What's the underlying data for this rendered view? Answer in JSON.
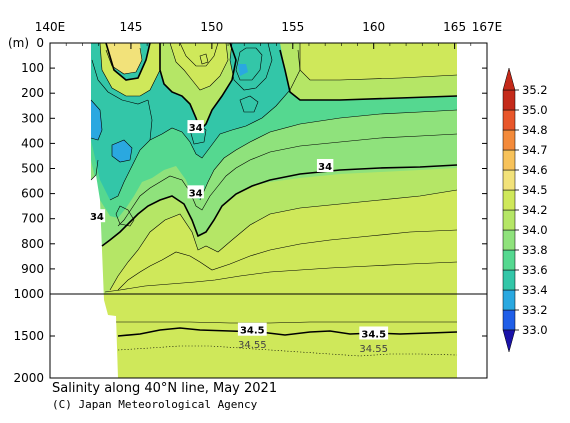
{
  "chart_data": {
    "type": "heatmap",
    "title": "Salinity along 40°N line, May 2021",
    "credit": "(C) Japan Meteorological Agency",
    "x_axis": {
      "range": [
        140,
        167
      ],
      "tick_values": [
        140,
        145,
        150,
        155,
        160,
        165,
        167
      ],
      "tick_labels": [
        "140E",
        "145",
        "150",
        "155",
        "160",
        "165",
        "167E"
      ]
    },
    "y_axis": {
      "unit_label": "(m)",
      "range": [
        0,
        2000
      ],
      "tick_labels": [
        "0",
        "100",
        "200",
        "300",
        "400",
        "500",
        "600",
        "700",
        "800",
        "900",
        "1000",
        "1500",
        "2000"
      ],
      "upper_ticks": [
        0,
        100,
        200,
        300,
        400,
        500,
        600,
        700,
        800,
        900,
        1000
      ],
      "lower_ticks": [
        1500,
        2000
      ],
      "scale_break_depth": 1000
    },
    "colorbar": {
      "levels": [
        33.0,
        33.2,
        33.4,
        33.6,
        33.8,
        34.0,
        34.2,
        34.5,
        34.6,
        34.7,
        34.8,
        35.0,
        35.2
      ],
      "labels": [
        "33.0",
        "33.2",
        "33.4",
        "33.6",
        "33.8",
        "34.0",
        "34.2",
        "34.5",
        "34.6",
        "34.7",
        "34.8",
        "35.0",
        "35.2"
      ],
      "colors": [
        "#1a12a8",
        "#1f5ee8",
        "#2aa8e0",
        "#33c6a8",
        "#55d890",
        "#8fe27c",
        "#b5e666",
        "#cfe85a",
        "#f2e27a",
        "#f7c25a",
        "#f38a3a",
        "#e8562a",
        "#c42a1a"
      ]
    },
    "contour_labels": [
      {
        "text": "34",
        "lon": 149.0,
        "depth": 335
      },
      {
        "text": "34",
        "lon": 157.0,
        "depth": 490
      },
      {
        "text": "34",
        "lon": 149.0,
        "depth": 595
      },
      {
        "text": "34",
        "lon": 142.9,
        "depth": 690
      },
      {
        "text": "34.5",
        "lon": 152.5,
        "depth": 1425
      },
      {
        "text": "34.5",
        "lon": 160.0,
        "depth": 1470
      },
      {
        "text": "34.55",
        "lon": 152.5,
        "depth": 1595
      },
      {
        "text": "34.55",
        "lon": 160.0,
        "depth": 1640
      }
    ]
  }
}
